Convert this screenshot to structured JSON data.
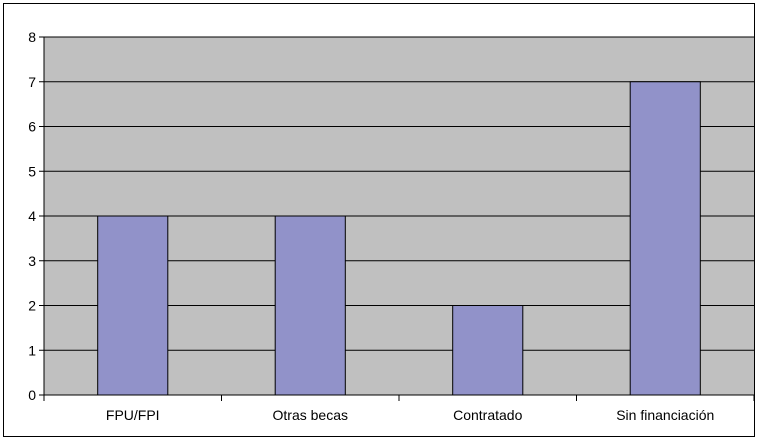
{
  "chart_data": {
    "type": "bar",
    "categories": [
      "FPU/FPI",
      "Otras becas",
      "Contratado",
      "Sin financiación"
    ],
    "values": [
      4,
      4,
      2,
      7
    ],
    "title": "",
    "xlabel": "",
    "ylabel": "",
    "ylim": [
      0,
      8
    ],
    "yticks": [
      0,
      1,
      2,
      3,
      4,
      5,
      6,
      7,
      8
    ],
    "grid": true,
    "legend": "none",
    "colors": {
      "bar_fill": "#9192c9",
      "bar_stroke": "#000000",
      "plot_background": "#c0c0c0",
      "gridline": "#000000"
    }
  }
}
